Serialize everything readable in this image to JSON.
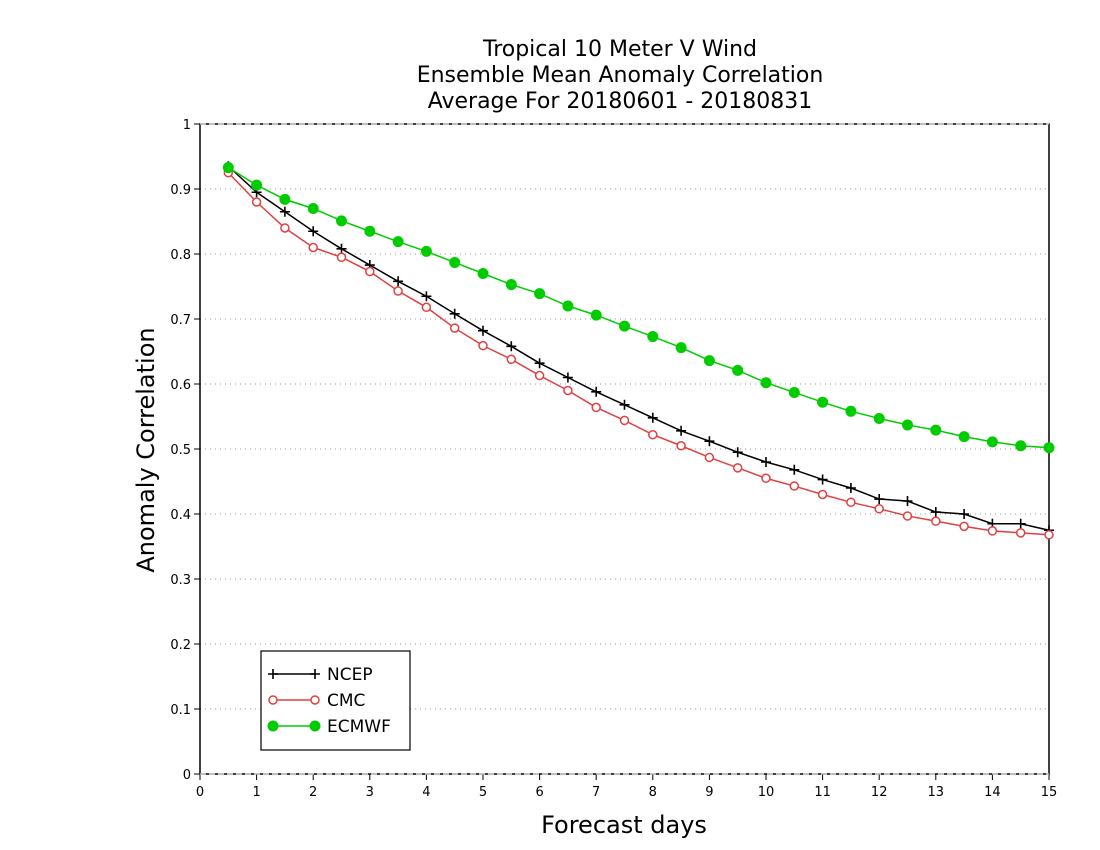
{
  "chart_data": {
    "type": "line",
    "title_lines": [
      "Tropical 10 Meter V Wind",
      "Ensemble Mean Anomaly Correlation",
      "Average For 20180601 - 20180831"
    ],
    "xlabel": "Forecast days",
    "ylabel": "Anomaly Correlation",
    "xlim": [
      0,
      15
    ],
    "ylim": [
      0,
      1
    ],
    "x_ticks": [
      "0",
      "1",
      "2",
      "3",
      "4",
      "5",
      "6",
      "7",
      "8",
      "9",
      "10",
      "11",
      "12",
      "13",
      "14",
      "15"
    ],
    "y_ticks": [
      "0",
      "0.1",
      "0.2",
      "0.3",
      "0.4",
      "0.5",
      "0.6",
      "0.7",
      "0.8",
      "0.9",
      "1"
    ],
    "grid": "horizontal dotted",
    "legend_position": "lower-left",
    "x": [
      0.5,
      1,
      1.5,
      2,
      2.5,
      3,
      3.5,
      4,
      4.5,
      5,
      5.5,
      6,
      6.5,
      7,
      7.5,
      8,
      8.5,
      9,
      9.5,
      10,
      10.5,
      11,
      11.5,
      12,
      12.5,
      13,
      13.5,
      14,
      14.5,
      15
    ],
    "series": [
      {
        "name": "NCEP",
        "color": "#000000",
        "marker": "plus",
        "values": [
          0.935,
          0.895,
          0.865,
          0.835,
          0.808,
          0.783,
          0.758,
          0.735,
          0.708,
          0.682,
          0.658,
          0.632,
          0.61,
          0.588,
          0.568,
          0.548,
          0.528,
          0.512,
          0.495,
          0.48,
          0.468,
          0.453,
          0.44,
          0.423,
          0.42,
          0.403,
          0.4,
          0.385,
          0.385,
          0.375
        ]
      },
      {
        "name": "CMC",
        "color": "#e04040",
        "marker": "open-circle",
        "values": [
          0.925,
          0.88,
          0.84,
          0.81,
          0.795,
          0.773,
          0.743,
          0.718,
          0.686,
          0.659,
          0.638,
          0.613,
          0.59,
          0.564,
          0.544,
          0.522,
          0.505,
          0.487,
          0.471,
          0.455,
          0.443,
          0.43,
          0.418,
          0.408,
          0.397,
          0.389,
          0.381,
          0.374,
          0.371,
          0.368
        ]
      },
      {
        "name": "ECMWF",
        "color": "#00cc00",
        "marker": "filled-circle",
        "values": [
          0.933,
          0.906,
          0.884,
          0.87,
          0.851,
          0.835,
          0.819,
          0.804,
          0.787,
          0.77,
          0.753,
          0.739,
          0.72,
          0.706,
          0.689,
          0.673,
          0.656,
          0.636,
          0.621,
          0.602,
          0.587,
          0.572,
          0.558,
          0.547,
          0.537,
          0.529,
          0.519,
          0.511,
          0.505,
          0.502
        ]
      }
    ]
  }
}
